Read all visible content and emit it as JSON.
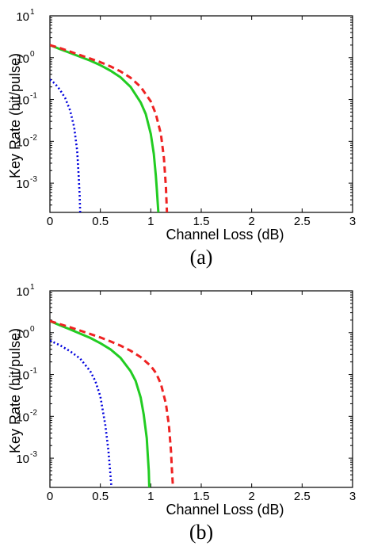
{
  "chart_data": [
    {
      "type": "line",
      "caption": "(a)",
      "xlabel": "Channel Loss (dB)",
      "ylabel": "Key Rate (bit/pulse)",
      "xlim": [
        0,
        3
      ],
      "ylim": [
        0.0002,
        10
      ],
      "yscale": "log",
      "xticks": [
        "0",
        "0.5",
        "1",
        "1.5",
        "2",
        "2.5",
        "3"
      ],
      "yticks": [
        {
          "base": "10",
          "exp": "1",
          "value": 10
        },
        {
          "base": "10",
          "exp": "0",
          "value": 1
        },
        {
          "base": "10",
          "exp": "-1",
          "value": 0.1
        },
        {
          "base": "10",
          "exp": "-2",
          "value": 0.01
        },
        {
          "base": "10",
          "exp": "-3",
          "value": 0.001
        }
      ],
      "grid": false,
      "series": [
        {
          "color": "#0000dd",
          "style": "dotted",
          "x": [
            0,
            0.05,
            0.1,
            0.15,
            0.2,
            0.24,
            0.27,
            0.285,
            0.295,
            0.3
          ],
          "y": [
            0.3,
            0.24,
            0.17,
            0.11,
            0.055,
            0.022,
            0.006,
            0.0015,
            0.0005,
            0.0002
          ]
        },
        {
          "color": "#22cc22",
          "style": "solid",
          "x": [
            0,
            0.1,
            0.2,
            0.3,
            0.4,
            0.5,
            0.6,
            0.7,
            0.8,
            0.9,
            0.95,
            1.0,
            1.03,
            1.05,
            1.06,
            1.07,
            1.075
          ],
          "y": [
            2.0,
            1.6,
            1.3,
            1.05,
            0.85,
            0.66,
            0.49,
            0.34,
            0.2,
            0.085,
            0.045,
            0.015,
            0.005,
            0.0015,
            0.0007,
            0.0003,
            0.0002
          ]
        },
        {
          "color": "#ee2222",
          "style": "dashed",
          "x": [
            0,
            0.1,
            0.2,
            0.3,
            0.4,
            0.5,
            0.6,
            0.7,
            0.8,
            0.9,
            1.0,
            1.05,
            1.1,
            1.13,
            1.15,
            1.16
          ],
          "y": [
            2.0,
            1.7,
            1.4,
            1.15,
            0.95,
            0.78,
            0.62,
            0.47,
            0.33,
            0.2,
            0.09,
            0.045,
            0.015,
            0.004,
            0.0008,
            0.0002
          ]
        }
      ]
    },
    {
      "type": "line",
      "caption": "(b)",
      "xlabel": "Channel Loss (dB)",
      "ylabel": "Key Rate (bit/pulse)",
      "xlim": [
        0,
        3
      ],
      "ylim": [
        0.0002,
        10
      ],
      "yscale": "log",
      "xticks": [
        "0",
        "0.5",
        "1",
        "1.5",
        "2",
        "2.5",
        "3"
      ],
      "yticks": [
        {
          "base": "10",
          "exp": "1",
          "value": 10
        },
        {
          "base": "10",
          "exp": "0",
          "value": 1
        },
        {
          "base": "10",
          "exp": "-1",
          "value": 0.1
        },
        {
          "base": "10",
          "exp": "-2",
          "value": 0.01
        },
        {
          "base": "10",
          "exp": "-3",
          "value": 0.001
        }
      ],
      "grid": false,
      "series": [
        {
          "color": "#0000dd",
          "style": "dotted",
          "x": [
            0,
            0.1,
            0.2,
            0.3,
            0.4,
            0.45,
            0.5,
            0.55,
            0.58,
            0.6,
            0.61
          ],
          "y": [
            0.65,
            0.5,
            0.36,
            0.24,
            0.12,
            0.07,
            0.03,
            0.006,
            0.0015,
            0.0004,
            0.0002
          ]
        },
        {
          "color": "#22cc22",
          "style": "solid",
          "x": [
            0,
            0.1,
            0.2,
            0.3,
            0.4,
            0.5,
            0.6,
            0.7,
            0.8,
            0.85,
            0.9,
            0.93,
            0.96,
            0.97,
            0.98,
            0.985
          ],
          "y": [
            1.9,
            1.5,
            1.2,
            0.95,
            0.75,
            0.56,
            0.4,
            0.25,
            0.12,
            0.07,
            0.028,
            0.011,
            0.003,
            0.0012,
            0.0005,
            0.0002
          ]
        },
        {
          "color": "#ee2222",
          "style": "dashed",
          "x": [
            0,
            0.1,
            0.2,
            0.3,
            0.4,
            0.5,
            0.6,
            0.7,
            0.8,
            0.9,
            1.0,
            1.05,
            1.1,
            1.15,
            1.18,
            1.2,
            1.21,
            1.22
          ],
          "y": [
            1.9,
            1.6,
            1.35,
            1.12,
            0.93,
            0.77,
            0.62,
            0.49,
            0.37,
            0.26,
            0.16,
            0.11,
            0.06,
            0.02,
            0.006,
            0.0015,
            0.0005,
            0.0002
          ]
        }
      ]
    }
  ]
}
